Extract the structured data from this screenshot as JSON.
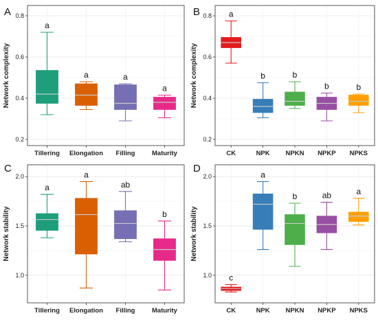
{
  "chart_data": [
    {
      "type": "box",
      "panel": "A",
      "ylabel": "Network complexity",
      "ylim": [
        0.17,
        0.85
      ],
      "yticks": [
        0.2,
        0.4,
        0.6,
        0.8
      ],
      "tick_labels": [
        "0.2",
        "0.4",
        "0.6",
        "0.8"
      ],
      "grid": true,
      "categories": [
        "Tillering",
        "Elongation",
        "Filling",
        "Maturity"
      ],
      "colors": [
        "#1e9e7b",
        "#d95f02",
        "#7570b3",
        "#e7298a"
      ],
      "boxes": [
        {
          "min": 0.32,
          "q1": 0.375,
          "median": 0.42,
          "q3": 0.535,
          "max": 0.72,
          "letter": "a"
        },
        {
          "min": 0.345,
          "q1": 0.365,
          "median": 0.415,
          "q3": 0.47,
          "max": 0.48,
          "letter": "a"
        },
        {
          "min": 0.29,
          "q1": 0.345,
          "median": 0.375,
          "q3": 0.465,
          "max": 0.47,
          "letter": "a"
        },
        {
          "min": 0.305,
          "q1": 0.345,
          "median": 0.38,
          "q3": 0.405,
          "max": 0.415,
          "letter": "a"
        }
      ]
    },
    {
      "type": "box",
      "panel": "B",
      "ylabel": "Network complexity",
      "ylim": [
        0.17,
        0.85
      ],
      "yticks": [
        0.2,
        0.4,
        0.6,
        0.8
      ],
      "tick_labels": [
        "0.2",
        "0.4",
        "0.6",
        "0.8"
      ],
      "grid": true,
      "categories": [
        "CK",
        "NPK",
        "NPKN",
        "NPKP",
        "NPKS"
      ],
      "colors": [
        "#e41a1c",
        "#377eb8",
        "#4daf4a",
        "#984ea3",
        "#ff9f00"
      ],
      "boxes": [
        {
          "min": 0.57,
          "q1": 0.645,
          "median": 0.67,
          "q3": 0.695,
          "max": 0.775,
          "letter": "a"
        },
        {
          "min": 0.305,
          "q1": 0.33,
          "median": 0.36,
          "q3": 0.395,
          "max": 0.475,
          "letter": "b"
        },
        {
          "min": 0.35,
          "q1": 0.365,
          "median": 0.385,
          "q3": 0.43,
          "max": 0.48,
          "letter": "b"
        },
        {
          "min": 0.29,
          "q1": 0.345,
          "median": 0.375,
          "q3": 0.405,
          "max": 0.425,
          "letter": "b"
        },
        {
          "min": 0.33,
          "q1": 0.365,
          "median": 0.385,
          "q3": 0.415,
          "max": 0.42,
          "letter": "b"
        }
      ]
    },
    {
      "type": "box",
      "panel": "C",
      "ylabel": "Network stability",
      "ylim": [
        0.72,
        2.12
      ],
      "yticks": [
        1.0,
        1.5,
        2.0
      ],
      "tick_labels": [
        "1.0",
        "1.5",
        "2.0"
      ],
      "grid": true,
      "categories": [
        "Tillering",
        "Elongation",
        "Filling",
        "Maturity"
      ],
      "colors": [
        "#1e9e7b",
        "#d95f02",
        "#7570b3",
        "#e7298a"
      ],
      "boxes": [
        {
          "min": 1.38,
          "q1": 1.455,
          "median": 1.565,
          "q3": 1.625,
          "max": 1.82,
          "letter": "a"
        },
        {
          "min": 0.87,
          "q1": 1.215,
          "median": 1.615,
          "q3": 1.78,
          "max": 1.95,
          "letter": "a"
        },
        {
          "min": 1.34,
          "q1": 1.37,
          "median": 1.525,
          "q3": 1.655,
          "max": 1.85,
          "letter": "ab"
        },
        {
          "min": 0.85,
          "q1": 1.15,
          "median": 1.26,
          "q3": 1.37,
          "max": 1.55,
          "letter": "b"
        }
      ]
    },
    {
      "type": "box",
      "panel": "D",
      "ylabel": "Network stability",
      "ylim": [
        0.72,
        2.12
      ],
      "yticks": [
        1.0,
        1.5,
        2.0
      ],
      "tick_labels": [
        "1.0",
        "1.5",
        "2.0"
      ],
      "grid": true,
      "categories": [
        "CK",
        "NPK",
        "NPKN",
        "NPKP",
        "NPKS"
      ],
      "colors": [
        "#e41a1c",
        "#377eb8",
        "#4daf4a",
        "#984ea3",
        "#ff9f00"
      ],
      "boxes": [
        {
          "min": 0.83,
          "q1": 0.845,
          "median": 0.865,
          "q3": 0.88,
          "max": 0.905,
          "letter": "c"
        },
        {
          "min": 1.26,
          "q1": 1.465,
          "median": 1.72,
          "q3": 1.825,
          "max": 1.95,
          "letter": "a"
        },
        {
          "min": 1.09,
          "q1": 1.31,
          "median": 1.525,
          "q3": 1.615,
          "max": 1.73,
          "letter": "b"
        },
        {
          "min": 1.26,
          "q1": 1.43,
          "median": 1.515,
          "q3": 1.6,
          "max": 1.74,
          "letter": "ab"
        },
        {
          "min": 1.51,
          "q1": 1.545,
          "median": 1.6,
          "q3": 1.64,
          "max": 1.78,
          "letter": "a"
        }
      ]
    }
  ]
}
